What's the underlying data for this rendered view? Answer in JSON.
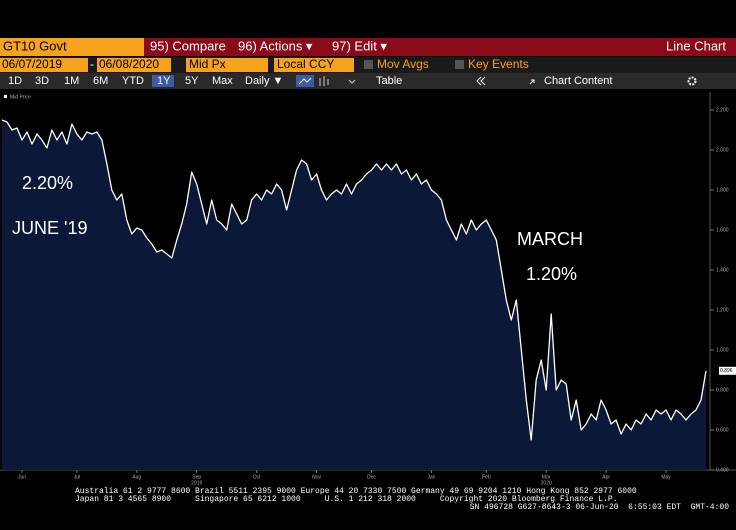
{
  "toolbar": {
    "ticker": "GT10 Govt",
    "buttons": [
      "95) Compare",
      "96) Actions ▾",
      "97) Edit ▾"
    ],
    "view": "Line Chart"
  },
  "controls": {
    "start_date": "06/07/2019",
    "separator": "-",
    "end_date": "06/08/2020",
    "price": "Mid Px",
    "currency": "Local CCY",
    "options": [
      "Mov Avgs",
      "Key Events"
    ]
  },
  "periods": [
    "1D",
    "3D",
    "1M",
    "6M",
    "YTD",
    "1Y",
    "5Y",
    "Max"
  ],
  "selected_period": "1Y",
  "frequency": "Daily ▼",
  "table": "Table",
  "chart_content": "Chart Content",
  "chart_data": {
    "type": "line",
    "categories": [
      null,
      null,
      null,
      null,
      "Jun",
      null,
      null,
      null,
      null,
      null,
      null,
      null,
      null,
      null,
      null,
      "Jul",
      null,
      null,
      null,
      null,
      null,
      null,
      null,
      null,
      null,
      null,
      null,
      "Aug",
      null,
      null,
      null,
      null,
      null,
      null,
      null,
      null,
      null,
      null,
      null,
      "Sep",
      null,
      null,
      null,
      null,
      null,
      null,
      null,
      null,
      null,
      null,
      null,
      "Oct",
      null,
      null,
      null,
      null,
      null,
      null,
      null,
      null,
      null,
      null,
      null,
      "Nov",
      null,
      null,
      null,
      null,
      null,
      null,
      null,
      null,
      null,
      null,
      "Dec",
      null,
      null,
      null,
      null,
      null,
      null,
      null,
      null,
      null,
      null,
      null,
      "Jan",
      null,
      null,
      null,
      null,
      null,
      null,
      null,
      null,
      null,
      null,
      "Feb",
      null,
      null,
      null,
      null,
      null,
      null,
      null,
      null,
      null,
      null,
      null,
      "Mar",
      null,
      null,
      null,
      null,
      null,
      null,
      null,
      null,
      null,
      null,
      null,
      "Apr",
      null,
      null,
      null,
      null,
      null,
      null,
      null,
      null,
      null,
      null,
      null,
      "May",
      null,
      null,
      null,
      null,
      null,
      null,
      null,
      null
    ],
    "sublabels": [
      null,
      null,
      null,
      null,
      null,
      null,
      null,
      null,
      null,
      null,
      null,
      null,
      null,
      null,
      null,
      null,
      null,
      null,
      null,
      null,
      null,
      null,
      null,
      null,
      null,
      null,
      null,
      null,
      null,
      null,
      null,
      null,
      null,
      null,
      null,
      null,
      null,
      null,
      null,
      "2019",
      null,
      null,
      null,
      null,
      null,
      null,
      null,
      null,
      null,
      null,
      null,
      null,
      null,
      null,
      null,
      null,
      null,
      null,
      null,
      null,
      null,
      null,
      null,
      null,
      null,
      null,
      null,
      null,
      null,
      null,
      null,
      null,
      null,
      null,
      null,
      null,
      null,
      null,
      null,
      null,
      null,
      null,
      null,
      null,
      null,
      null,
      null,
      null,
      null,
      null,
      null,
      null,
      null,
      null,
      null,
      null,
      null,
      null,
      null,
      null,
      null,
      null,
      null,
      null,
      null,
      null,
      null,
      null,
      null,
      "2020",
      null,
      null,
      null,
      null,
      null,
      null,
      null,
      null,
      null,
      null,
      null,
      null,
      null,
      null,
      null,
      null,
      null,
      null,
      null,
      null,
      null,
      null,
      null,
      null,
      null,
      null,
      null,
      null,
      null,
      null,
      null,
      null
    ],
    "series": [
      {
        "name": "Mid Price",
        "color": "#ffffff",
        "fill": "#0b1838",
        "values": [
          2.15,
          2.14,
          2.1,
          2.11,
          2.05,
          2.09,
          2.03,
          2.08,
          2.05,
          2.01,
          2.1,
          2.05,
          2.09,
          2.03,
          2.13,
          2.08,
          2.05,
          2.09,
          2.08,
          2.09,
          2.05,
          1.93,
          1.8,
          1.75,
          1.78,
          1.65,
          1.58,
          1.61,
          1.6,
          1.56,
          1.53,
          1.49,
          1.5,
          1.48,
          1.46,
          1.55,
          1.63,
          1.73,
          1.89,
          1.83,
          1.73,
          1.63,
          1.75,
          1.65,
          1.63,
          1.6,
          1.73,
          1.68,
          1.63,
          1.65,
          1.75,
          1.78,
          1.75,
          1.8,
          1.78,
          1.83,
          1.8,
          1.7,
          1.8,
          1.9,
          1.95,
          1.93,
          1.85,
          1.88,
          1.8,
          1.75,
          1.78,
          1.8,
          1.78,
          1.83,
          1.78,
          1.83,
          1.85,
          1.88,
          1.9,
          1.93,
          1.9,
          1.93,
          1.9,
          1.93,
          1.88,
          1.9,
          1.85,
          1.88,
          1.83,
          1.85,
          1.8,
          1.78,
          1.75,
          1.65,
          1.6,
          1.55,
          1.63,
          1.58,
          1.65,
          1.6,
          1.63,
          1.65,
          1.6,
          1.55,
          1.4,
          1.25,
          1.15,
          1.25,
          1.0,
          0.75,
          0.55,
          0.85,
          0.95,
          0.8,
          1.18,
          0.8,
          0.85,
          0.83,
          0.65,
          0.75,
          0.6,
          0.63,
          0.68,
          0.65,
          0.75,
          0.7,
          0.63,
          0.65,
          0.58,
          0.63,
          0.6,
          0.65,
          0.63,
          0.68,
          0.65,
          0.7,
          0.68,
          0.7,
          0.65,
          0.7,
          0.68,
          0.65,
          0.68,
          0.7,
          0.75,
          0.896
        ]
      }
    ],
    "ylim": [
      0.4,
      2.29
    ],
    "yticks": [
      {
        "value": 0.4,
        "label": "0.400"
      },
      {
        "value": 0.6,
        "label": "0.600"
      },
      {
        "value": 0.8,
        "label": "0.800"
      },
      {
        "value": 1.0,
        "label": "1.000"
      },
      {
        "value": 1.2,
        "label": "1.200"
      },
      {
        "value": 1.4,
        "label": "1.400"
      },
      {
        "value": 1.6,
        "label": "1.600"
      },
      {
        "value": 1.8,
        "label": "1.800"
      },
      {
        "value": 2.0,
        "label": "2.000"
      },
      {
        "value": 2.2,
        "label": "2.200"
      }
    ],
    "annotations": [
      "2.20%",
      "JUNE '19",
      "MARCH",
      "1.20%"
    ]
  },
  "footer": [
    "Australia 61 2 9777 8600 Brazil 5511 2395 9000 Europe 44 20 7330 7500 Germany 49 69 9204 1210 Hong Kong 852 2977 6000",
    "Japan 81 3 4565 8900     Singapore 65 6212 1000     U.S. 1 212 318 2000     Copyright 2020 Bloomberg Finance L.P.",
    "SN 496728 G627-8643-3 06-Jun-20  6:55:03 EDT  GMT-4:00"
  ]
}
